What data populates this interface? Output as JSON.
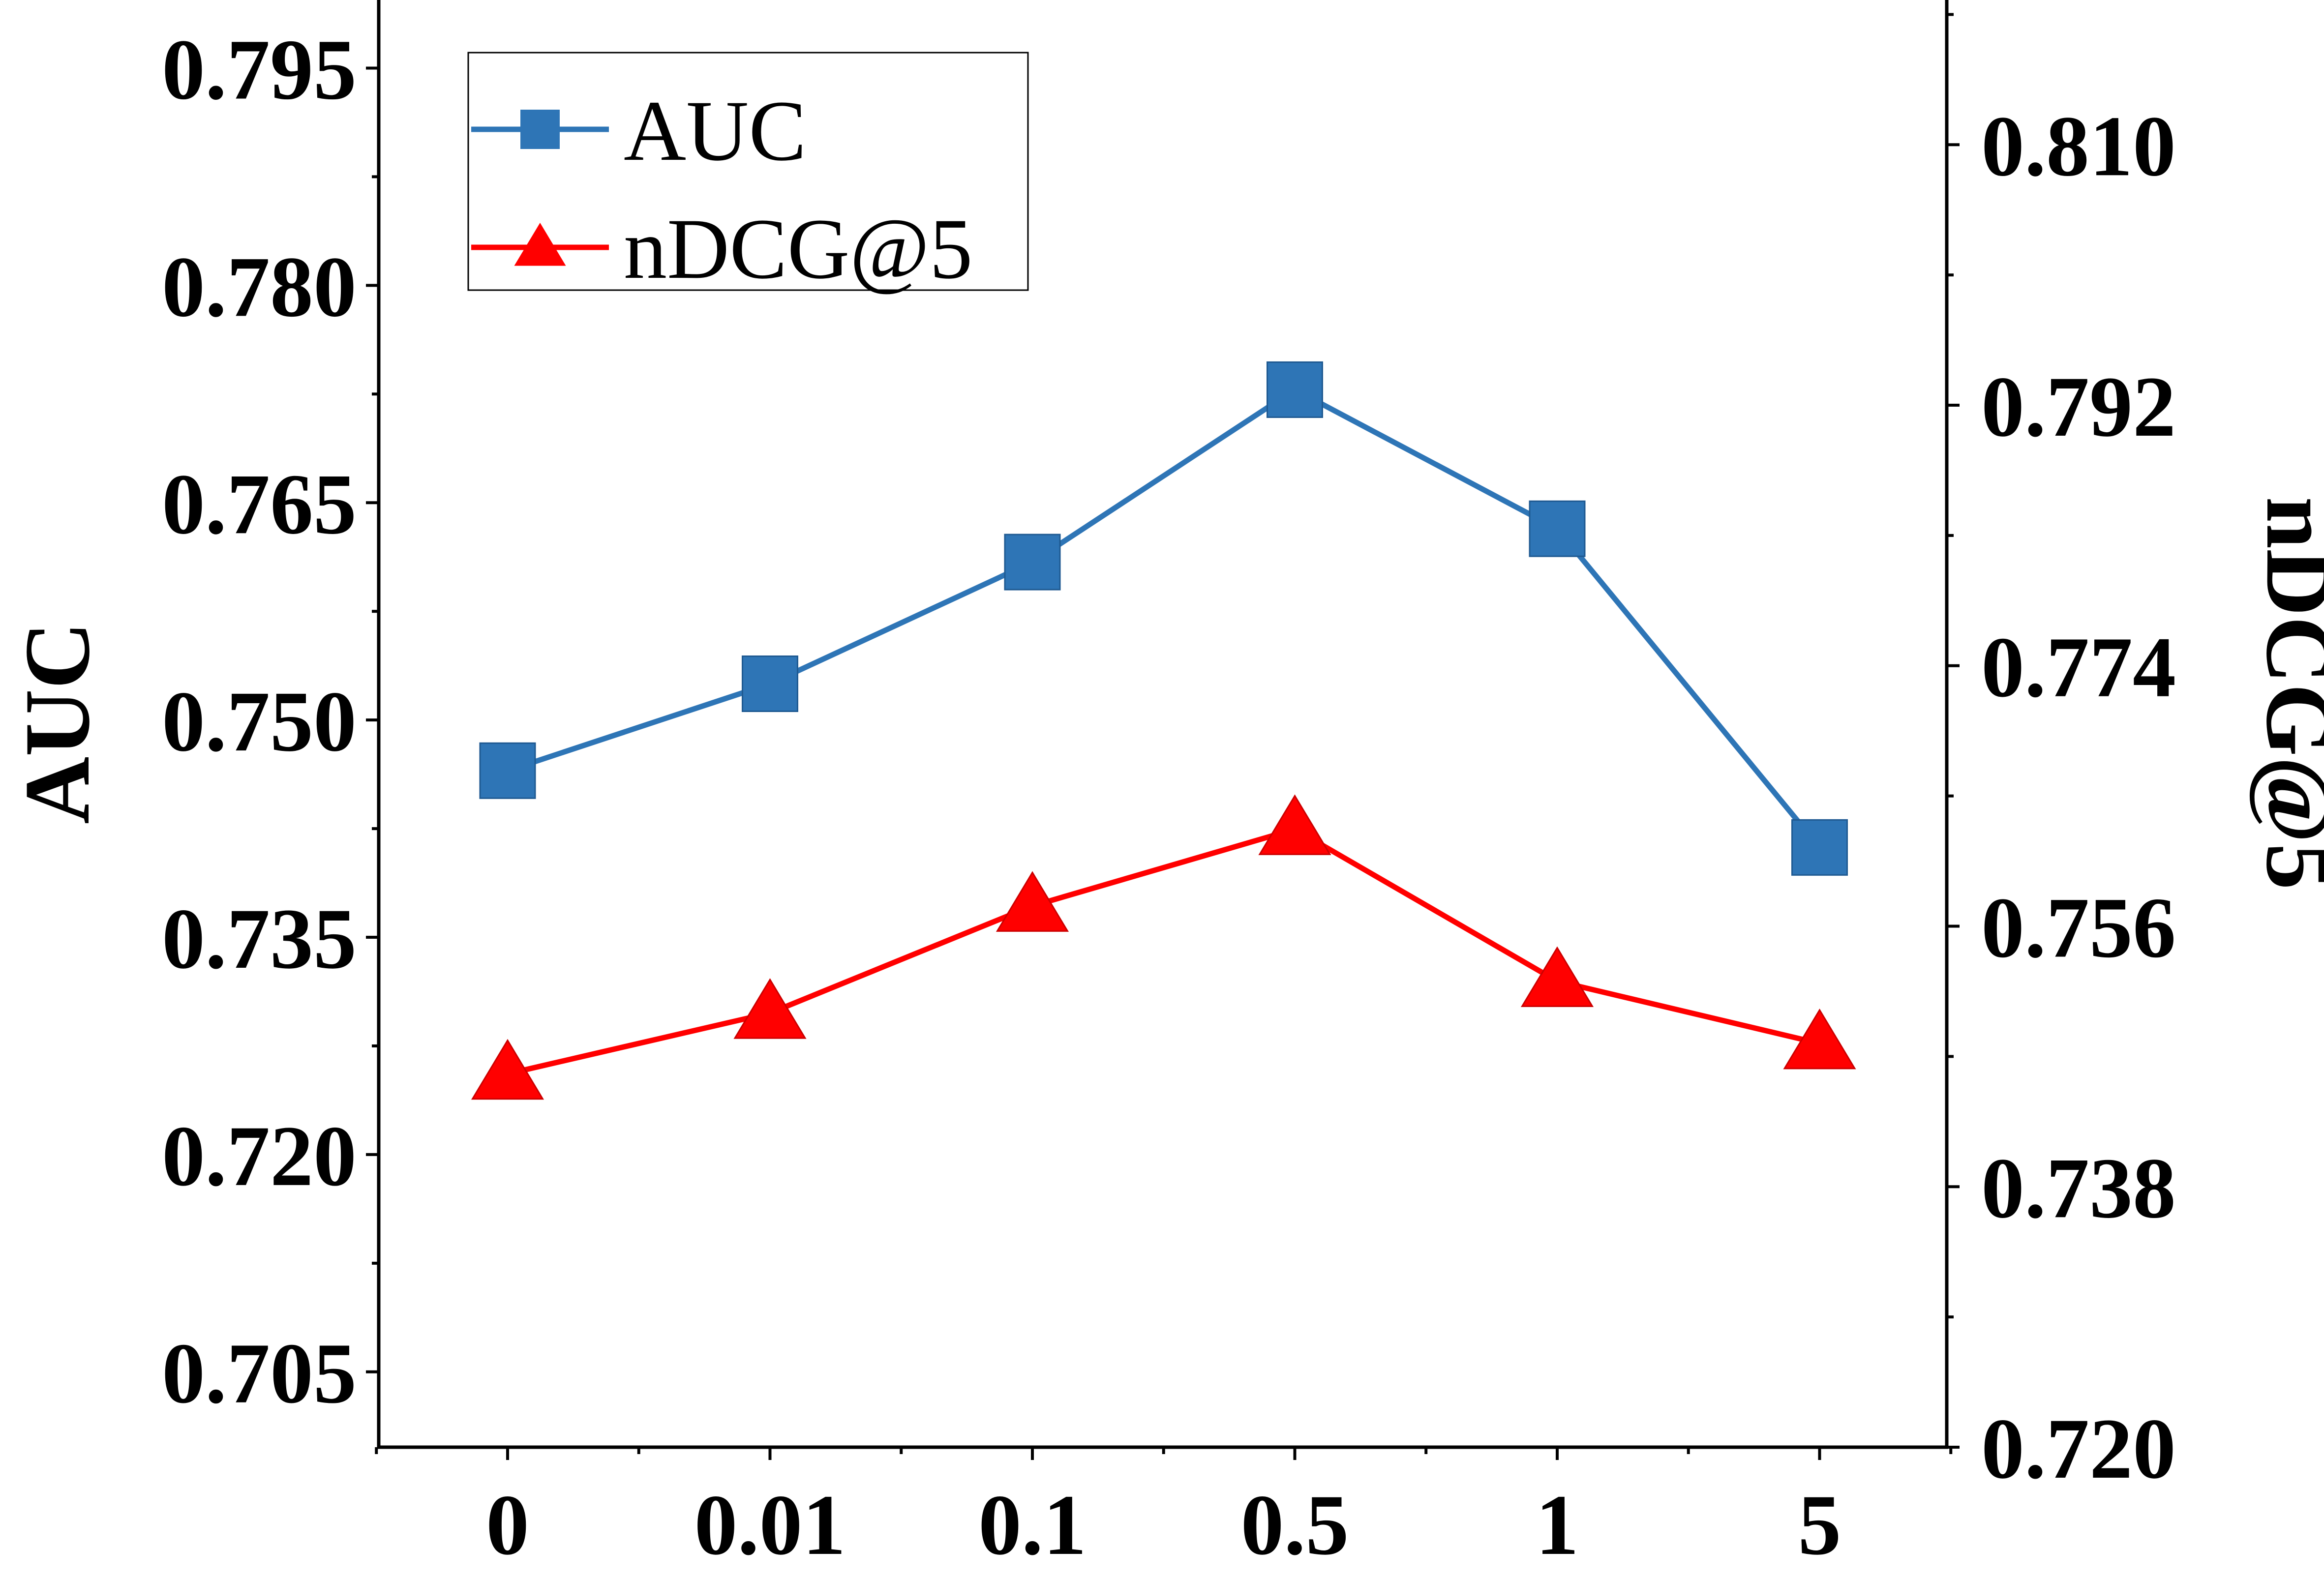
{
  "chart_data": {
    "type": "line",
    "categories": [
      "0",
      "0.01",
      "0.1",
      "0.5",
      "1",
      "5"
    ],
    "series": [
      {
        "name": "AUC",
        "axis": "left",
        "color": "#2e75b6",
        "marker": "square",
        "values": [
          0.7465,
          0.7525,
          0.7609,
          0.7728,
          0.7632,
          0.7412
        ]
      },
      {
        "name": "nDCG@5",
        "axis": "right",
        "color": "#ff0000",
        "marker": "triangle",
        "values": [
          0.7458,
          0.75,
          0.7574,
          0.7627,
          0.7522,
          0.7479
        ]
      }
    ],
    "xlabel": "",
    "ylabel": "AUC",
    "ylabel_right": "nDCG@5",
    "ylim": [
      0.6998,
      0.7997
    ],
    "ylim_right": [
      0.72,
      0.82
    ],
    "yticks": [
      "0.705",
      "0.720",
      "0.735",
      "0.750",
      "0.765",
      "0.780",
      "0.795"
    ],
    "yticks_right": [
      "0.720",
      "0.738",
      "0.756",
      "0.774",
      "0.792",
      "0.810"
    ],
    "legend": {
      "position": "top-left",
      "entries": [
        "AUC",
        "nDCG@5"
      ]
    },
    "grid": false
  }
}
